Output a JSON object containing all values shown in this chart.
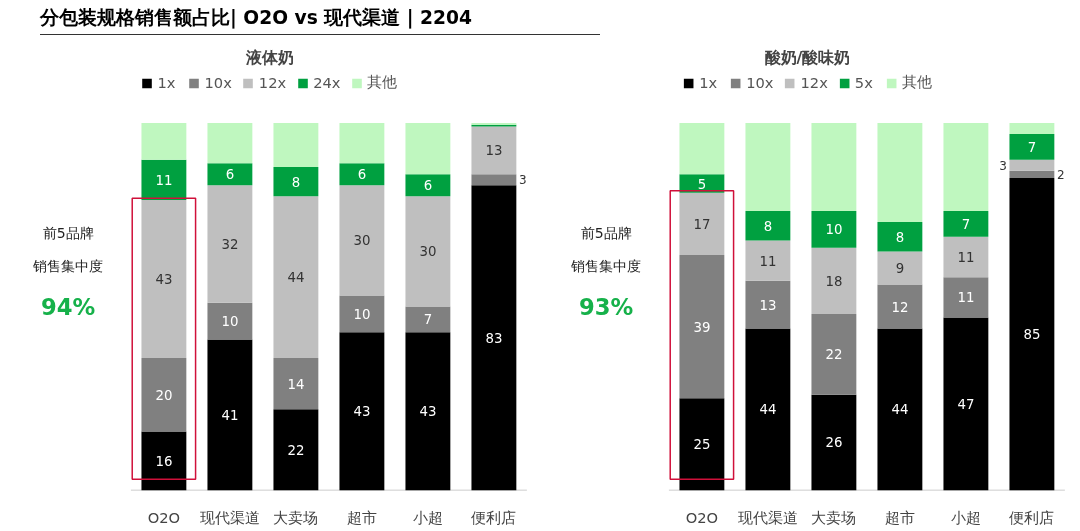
{
  "chart_data": [
    {
      "type": "bar",
      "stacked": true,
      "title": "分包装规格销售额占比| O2O vs 现代渠道 | 2204",
      "subtitle": "液体奶",
      "legend": "top",
      "categories": [
        "O2O",
        "现代渠道",
        "大卖场",
        "超市",
        "小超",
        "便利店"
      ],
      "series": [
        {
          "name": "1x",
          "color": "#000000",
          "values": [
            16,
            41,
            22,
            43,
            43,
            83
          ],
          "value_labels": [
            "16",
            "41",
            "22",
            "43",
            "43",
            "83"
          ]
        },
        {
          "name": "10x",
          "color": "#808080",
          "values": [
            20,
            10,
            14,
            10,
            7,
            3
          ],
          "value_labels": [
            "20",
            "10",
            "14",
            "10",
            "7",
            "3"
          ]
        },
        {
          "name": "12x",
          "color": "#bfbfbf",
          "values": [
            43,
            32,
            44,
            30,
            30,
            13
          ],
          "value_labels": [
            "43",
            "32",
            "44",
            "30",
            "30",
            "13"
          ]
        },
        {
          "name": "24x",
          "color": "#00a040",
          "values": [
            11,
            6,
            8,
            6,
            6,
            0.5
          ],
          "value_labels": [
            "11",
            "6",
            "8",
            "6",
            "6",
            null
          ]
        },
        {
          "name": "其他",
          "color": "#bff7bf",
          "values": [
            10,
            11,
            12,
            11,
            14,
            0.5
          ],
          "value_labels": [
            null,
            null,
            null,
            null,
            null,
            null
          ]
        }
      ],
      "annotations": [
        "前5品牌",
        "销售集中度",
        "94%"
      ]
    },
    {
      "type": "bar",
      "stacked": true,
      "title": "酸奶/酸味奶",
      "legend": "top",
      "categories": [
        "O2O",
        "现代渠道",
        "大卖场",
        "超市",
        "小超",
        "便利店"
      ],
      "series": [
        {
          "name": "1x",
          "color": "#000000",
          "values": [
            25,
            44,
            26,
            44,
            47,
            85
          ],
          "value_labels": [
            "25",
            "44",
            "26",
            "44",
            "47",
            "85"
          ]
        },
        {
          "name": "10x",
          "color": "#808080",
          "values": [
            39,
            13,
            22,
            12,
            11,
            2
          ],
          "value_labels": [
            "39",
            "13",
            "22",
            "12",
            "11",
            "2"
          ]
        },
        {
          "name": "12x",
          "color": "#bfbfbf",
          "values": [
            17,
            11,
            18,
            9,
            11,
            3
          ],
          "value_labels": [
            "17",
            "11",
            "18",
            "9",
            "11",
            "3"
          ]
        },
        {
          "name": "5x",
          "color": "#00a040",
          "values": [
            5,
            8,
            10,
            8,
            7,
            7
          ],
          "value_labels": [
            "5",
            "8",
            "10",
            "8",
            "7",
            "7"
          ]
        },
        {
          "name": "其他",
          "color": "#bff7bf",
          "values": [
            14,
            24,
            24,
            27,
            24,
            3
          ],
          "value_labels": [
            null,
            null,
            null,
            null,
            null,
            null
          ]
        }
      ],
      "annotations": [
        "前5品牌",
        "销售集中度",
        "93%"
      ]
    }
  ]
}
